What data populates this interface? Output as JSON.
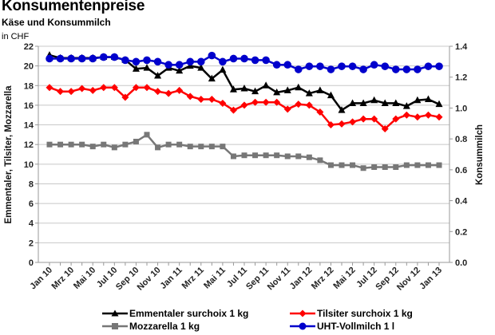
{
  "header": {
    "title": "Konsumentenpreise",
    "subtitle": "Käse und Konsummilch",
    "unit": "in CHF"
  },
  "chart_data": {
    "type": "line",
    "title": "Konsumentenpreise",
    "subtitle": "Käse und Konsummilch",
    "unit_note": "in CHF",
    "xlabel": "",
    "ylabel": "Emmentaler, Tilsiter, Mozzarella",
    "y2label": "Konsummilch",
    "ylim": [
      0,
      22
    ],
    "y2lim": [
      0,
      1.4
    ],
    "yticks": [
      "0",
      "2",
      "4",
      "6",
      "8",
      "10",
      "12",
      "14",
      "16",
      "18",
      "20",
      "22"
    ],
    "y2ticks": [
      "0.0",
      "0.2",
      "0.4",
      "0.6",
      "0.8",
      "1.0",
      "1.2",
      "1.4"
    ],
    "grid": true,
    "legend_position": "bottom",
    "x": [
      "Jan 10",
      "Feb 10",
      "Mrz 10",
      "Apr 10",
      "Mai 10",
      "Jun 10",
      "Jul 10",
      "Aug 10",
      "Sep 10",
      "Okt 10",
      "Nov 10",
      "Dez 10",
      "Jan 11",
      "Feb 11",
      "Mrz 11",
      "Apr 11",
      "Mai 11",
      "Jun 11",
      "Jul 11",
      "Aug 11",
      "Sep 11",
      "Okt 11",
      "Nov 11",
      "Dez 11",
      "Jan 12",
      "Feb 12",
      "Mrz 12",
      "Apr 12",
      "Mai 12",
      "Jun 12",
      "Jul 12",
      "Aug 12",
      "Sep 12",
      "Okt 12",
      "Nov 12",
      "Dez 12",
      "Jan 13"
    ],
    "xtick_labels": [
      "Jan 10",
      "Mrz 10",
      "Mai 10",
      "Jul 10",
      "Sep 10",
      "Nov 10",
      "Jan 11",
      "Mrz 11",
      "Mai 11",
      "Jul 11",
      "Sep 11",
      "Nov 11",
      "Jan 12",
      "Mrz 12",
      "Mai 12",
      "Jul 12",
      "Sep 12",
      "Nov 12",
      "Jan 13"
    ],
    "series": [
      {
        "name": "Emmentaler surchoix 1 kg",
        "axis": "left",
        "color": "#000000",
        "marker": "triangle",
        "values": [
          21.1,
          20.8,
          20.8,
          20.8,
          20.8,
          20.9,
          20.9,
          20.6,
          19.7,
          19.8,
          19.0,
          19.8,
          19.5,
          20.0,
          19.8,
          18.7,
          19.6,
          17.6,
          17.7,
          17.4,
          18.0,
          17.3,
          17.5,
          17.8,
          17.2,
          17.5,
          17.0,
          15.5,
          16.2,
          16.2,
          16.5,
          16.2,
          16.2,
          15.9,
          16.5,
          16.6,
          16.1
        ]
      },
      {
        "name": "Tilsiter surchoix 1 kg",
        "axis": "left",
        "color": "#ff0000",
        "marker": "diamond",
        "values": [
          17.8,
          17.4,
          17.4,
          17.7,
          17.5,
          17.8,
          17.8,
          16.8,
          17.8,
          17.8,
          17.4,
          17.2,
          17.5,
          16.9,
          16.6,
          16.6,
          16.2,
          15.5,
          16.0,
          16.3,
          16.3,
          16.3,
          15.6,
          16.1,
          16.0,
          15.3,
          14.0,
          14.1,
          14.3,
          14.6,
          14.6,
          13.6,
          14.6,
          15.0,
          14.8,
          15.0,
          14.8
        ]
      },
      {
        "name": "Mozzarella 1 kg",
        "axis": "left",
        "color": "#777777",
        "marker": "square",
        "values": [
          12.0,
          12.0,
          12.0,
          12.0,
          11.8,
          12.0,
          11.7,
          12.0,
          12.3,
          13.0,
          11.7,
          12.0,
          12.0,
          11.8,
          11.8,
          11.8,
          11.8,
          10.8,
          10.9,
          10.9,
          10.9,
          10.9,
          10.8,
          10.8,
          10.7,
          10.4,
          9.9,
          9.9,
          9.9,
          9.6,
          9.7,
          9.7,
          9.7,
          9.9,
          9.9,
          9.9,
          9.9
        ]
      },
      {
        "name": "UHT-Vollmilch 1 l",
        "axis": "right",
        "color": "#0000cc",
        "marker": "circle",
        "values": [
          1.32,
          1.32,
          1.32,
          1.32,
          1.32,
          1.33,
          1.33,
          1.31,
          1.3,
          1.31,
          1.3,
          1.28,
          1.28,
          1.3,
          1.3,
          1.34,
          1.3,
          1.32,
          1.32,
          1.31,
          1.31,
          1.28,
          1.28,
          1.25,
          1.27,
          1.27,
          1.25,
          1.27,
          1.27,
          1.25,
          1.28,
          1.27,
          1.25,
          1.25,
          1.25,
          1.27,
          1.27
        ]
      }
    ]
  }
}
